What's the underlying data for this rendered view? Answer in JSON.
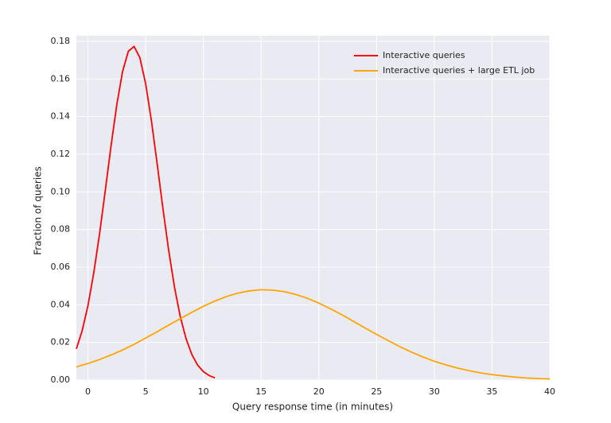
{
  "chart_data": {
    "type": "line",
    "x_label": "Query response time (in minutes)",
    "y_label": "Fraction of queries",
    "xlim": [
      -1,
      40
    ],
    "xticks": [
      0,
      5,
      10,
      15,
      20,
      25,
      30,
      35,
      40
    ],
    "ylim": [
      0,
      0.18
    ],
    "yticks": [
      {
        "value": 0,
        "label": "0.00"
      },
      0.02,
      0.04,
      0.06,
      0.08,
      {
        "value": 0.1,
        "label": "0.10"
      },
      0.12,
      0.14,
      0.16,
      0.18
    ],
    "grid": true,
    "legend": "upper right",
    "series": [
      {
        "name": "Interactive queries",
        "color": "#ff0000",
        "x": [
          -1,
          -0.5,
          0,
          0.5,
          1,
          1.5,
          2,
          2.5,
          3,
          3.5,
          4,
          4.5,
          5,
          5.5,
          6,
          6.5,
          7,
          7.5,
          8,
          8.5,
          9,
          9.5,
          10,
          10.5,
          11
        ],
        "values": [
          0.0166,
          0.0262,
          0.0395,
          0.0567,
          0.0774,
          0.1005,
          0.1243,
          0.1463,
          0.1639,
          0.1747,
          0.1773,
          0.1713,
          0.1575,
          0.1378,
          0.1148,
          0.091,
          0.0687,
          0.0493,
          0.0337,
          0.022,
          0.0136,
          0.008,
          0.0045,
          0.0024,
          0.0012
        ]
      },
      {
        "name": "Interactive queries + large ETL job",
        "color": "#ffa500",
        "x": [
          -1,
          0,
          1,
          2,
          3,
          4,
          5,
          6,
          7,
          8,
          9,
          10,
          11,
          12,
          13,
          14,
          15,
          16,
          17,
          18,
          19,
          20,
          21,
          22,
          23,
          24,
          25,
          26,
          27,
          28,
          29,
          30,
          31,
          32,
          33,
          34,
          35,
          36,
          37,
          38,
          39,
          40
        ],
        "values": [
          0.007,
          0.0088,
          0.0109,
          0.0133,
          0.016,
          0.019,
          0.0223,
          0.0257,
          0.0292,
          0.0326,
          0.036,
          0.0392,
          0.042,
          0.0444,
          0.0462,
          0.0474,
          0.048,
          0.0478,
          0.047,
          0.0455,
          0.0435,
          0.0409,
          0.0379,
          0.0347,
          0.0312,
          0.0277,
          0.0243,
          0.021,
          0.0178,
          0.0149,
          0.0123,
          0.01,
          0.0081,
          0.0064,
          0.005,
          0.0038,
          0.0029,
          0.0022,
          0.0016,
          0.0011,
          0.0008,
          0.0006
        ]
      }
    ]
  }
}
